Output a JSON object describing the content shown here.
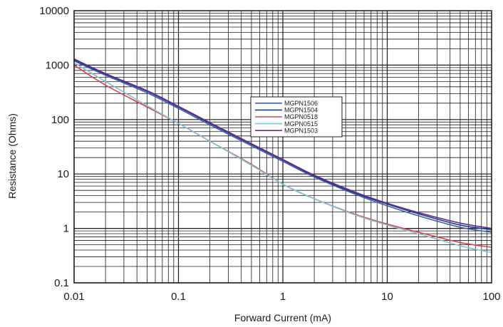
{
  "chart_data": {
    "type": "line",
    "title": "",
    "xlabel": "Forward Current (mA)",
    "ylabel": "Resistance (Ohms)",
    "x_scale": "log",
    "y_scale": "log",
    "xlim": [
      0.01,
      100
    ],
    "ylim": [
      0.1,
      10000
    ],
    "x_ticks": [
      "0.01",
      "0.1",
      "1",
      "10",
      "100"
    ],
    "y_ticks": [
      "0.1",
      "1",
      "10",
      "100",
      "1000",
      "10000"
    ],
    "grid": true,
    "legend_position": "center-right",
    "series": [
      {
        "name": "MGPN1506",
        "color": "#3b5ea8",
        "x": [
          0.01,
          0.02,
          0.05,
          0.1,
          0.2,
          0.5,
          1,
          2,
          5,
          10,
          20,
          50,
          100
        ],
        "y": [
          1200,
          650,
          310,
          160,
          80,
          33,
          17,
          8.8,
          4.2,
          2.6,
          1.7,
          1.05,
          0.85
        ]
      },
      {
        "name": "MGPN1504",
        "color": "#1f3c8c",
        "x": [
          0.01,
          0.02,
          0.05,
          0.1,
          0.2,
          0.5,
          1,
          2,
          5,
          10,
          20,
          50,
          100
        ],
        "y": [
          1250,
          680,
          330,
          170,
          85,
          35,
          18,
          9.2,
          4.4,
          2.8,
          1.85,
          1.15,
          0.95
        ]
      },
      {
        "name": "MGPN0518",
        "color": "#e0404a",
        "x": [
          0.01,
          0.02,
          0.05,
          0.1,
          0.2,
          0.5,
          1,
          2,
          5,
          10,
          20,
          50,
          100
        ],
        "y": [
          1000,
          430,
          170,
          85,
          40,
          15,
          6.5,
          3.5,
          1.8,
          1.2,
          0.85,
          0.55,
          0.45
        ]
      },
      {
        "name": "MGPN0515",
        "color": "#7fc4d9",
        "x": [
          0.01,
          0.02,
          0.05,
          0.1,
          0.2,
          0.5,
          1,
          2,
          5,
          10,
          20,
          50,
          100
        ],
        "y": [
          1100,
          500,
          180,
          85,
          40,
          14.5,
          6.5,
          3.5,
          1.75,
          1.15,
          0.8,
          0.48,
          0.36
        ]
      },
      {
        "name": "MGPN1503",
        "color": "#6a2a8c",
        "x": [
          0.01,
          0.02,
          0.05,
          0.1,
          0.2,
          0.5,
          1,
          2,
          5,
          10,
          20,
          50,
          100
        ],
        "y": [
          1300,
          700,
          340,
          175,
          88,
          36,
          18.5,
          9.5,
          4.6,
          2.9,
          1.95,
          1.25,
          1.0
        ]
      }
    ]
  }
}
